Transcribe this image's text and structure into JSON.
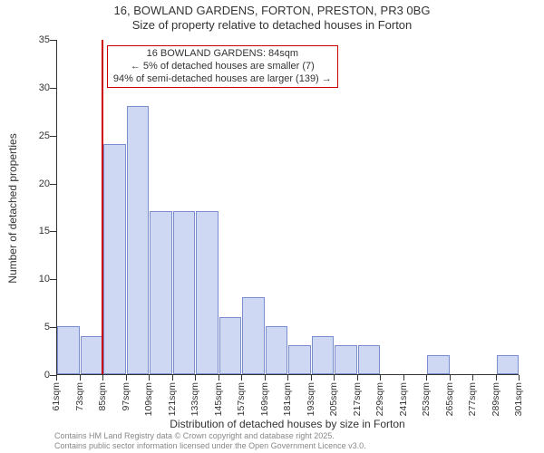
{
  "title_line1": "16, BOWLAND GARDENS, FORTON, PRESTON, PR3 0BG",
  "title_line2": "Size of property relative to detached houses in Forton",
  "y_axis_title": "Number of detached properties",
  "x_axis_title": "Distribution of detached houses by size in Forton",
  "footer_line1": "Contains HM Land Registry data © Crown copyright and database right 2025.",
  "footer_line2": "Contains public sector information licensed under the Open Government Licence v3.0.",
  "chart": {
    "type": "histogram",
    "ylim": [
      0,
      35
    ],
    "ytick_step": 5,
    "bar_fill": "#cfd8f2",
    "bar_stroke": "#7a8ecf",
    "background_color": "#ffffff",
    "axis_color": "#333333",
    "marker_color": "#cc0000",
    "xtick_unit": "sqm",
    "xtick_start": 61,
    "xtick_step": 12,
    "xtick_count": 21,
    "marker_x": 84,
    "values": [
      5,
      4,
      24,
      28,
      17,
      17,
      17,
      6,
      8,
      5,
      3,
      4,
      3,
      3,
      0,
      0,
      2,
      0,
      0,
      2
    ],
    "annotation": {
      "line1": "16 BOWLAND GARDENS: 84sqm",
      "line2": "← 5% of detached houses are smaller (7)",
      "line3": "94% of semi-detached houses are larger (139) →"
    },
    "title_fontsize": 13,
    "axis_title_fontsize": 12,
    "tick_fontsize": 11
  }
}
